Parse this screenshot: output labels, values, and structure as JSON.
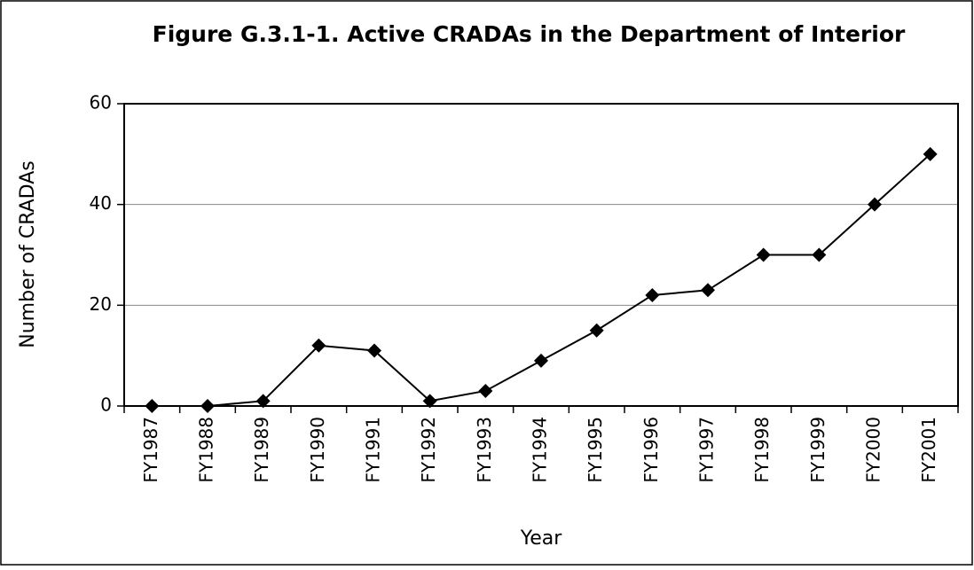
{
  "chart_data": {
    "type": "line",
    "title": "Figure G.3.1-1. Active CRADAs in the Department of Interior",
    "x_label": "Year",
    "y_label": "Number of CRADAs",
    "categories": [
      "FY1987",
      "FY1988",
      "FY1989",
      "FY1990",
      "FY1991",
      "FY1992",
      "FY1993",
      "FY1994",
      "FY1995",
      "FY1996",
      "FY1997",
      "FY1998",
      "FY1999",
      "FY2000",
      "FY2001"
    ],
    "series": [
      {
        "name": "Active CRADAs",
        "color": "#000000",
        "values": [
          0,
          0,
          1,
          12,
          11,
          1,
          3,
          9,
          15,
          22,
          23,
          30,
          30,
          40,
          50
        ]
      }
    ],
    "ylim": [
      0,
      60
    ],
    "yticks": [
      0,
      20,
      40,
      60
    ],
    "grid": true
  }
}
